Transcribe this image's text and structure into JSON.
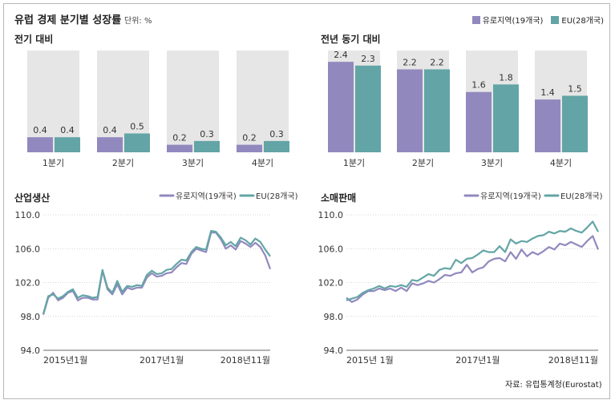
{
  "header": {
    "title": "유럽 경제 분기별 성장률",
    "unit": "단위: %",
    "legend": [
      "유로지역(19개국)",
      "EU(28개국)"
    ]
  },
  "colors": {
    "eurozone": "#9189be",
    "eu": "#63a5a6",
    "bg_bar": "#e6e6e6"
  },
  "panels": {
    "qoq_title": "전기 대비",
    "yoy_title": "전년 동기 대비",
    "industry_title": "산업생산",
    "retail_title": "소매판매"
  },
  "line_legend": [
    "유로지역(19개국)",
    "EU(28개국)"
  ],
  "source": "자료: 유럽통계청(Eurostat)",
  "chart_data": [
    {
      "type": "bar",
      "title": "전기 대비",
      "categories": [
        "1분기",
        "2분기",
        "3분기",
        "4분기"
      ],
      "series": [
        {
          "name": "유로지역(19개국)",
          "values": [
            0.4,
            0.4,
            0.2,
            0.2
          ],
          "labels": [
            "0.4",
            "0.4",
            "0.2",
            "0.2"
          ]
        },
        {
          "name": "EU(28개국)",
          "values": [
            0.4,
            0.5,
            0.3,
            0.3
          ],
          "labels": [
            "0.4",
            "0.5",
            "0.3",
            "0.3"
          ]
        }
      ],
      "ylim": [
        0,
        2.7
      ]
    },
    {
      "type": "bar",
      "title": "전년 동기 대비",
      "categories": [
        "1분기",
        "2분기",
        "3분기",
        "4분기"
      ],
      "series": [
        {
          "name": "유로지역(19개국)",
          "values": [
            2.4,
            2.2,
            1.6,
            1.4
          ],
          "labels": [
            "2.4",
            "2.2",
            "1.6",
            "1.4"
          ]
        },
        {
          "name": "EU(28개국)",
          "values": [
            2.3,
            2.2,
            1.8,
            1.5
          ],
          "labels": [
            "2.3",
            "2.2",
            "1.8",
            "1.5"
          ]
        }
      ],
      "ylim": [
        0,
        2.7
      ]
    },
    {
      "type": "line",
      "title": "산업생산",
      "x": [
        "2015-01",
        "2015-02",
        "2015-03",
        "2015-04",
        "2015-05",
        "2015-06",
        "2015-07",
        "2015-08",
        "2015-09",
        "2015-10",
        "2015-11",
        "2015-12",
        "2016-01",
        "2016-02",
        "2016-03",
        "2016-04",
        "2016-05",
        "2016-06",
        "2016-07",
        "2016-08",
        "2016-09",
        "2016-10",
        "2016-11",
        "2016-12",
        "2017-01",
        "2017-02",
        "2017-03",
        "2017-04",
        "2017-05",
        "2017-06",
        "2017-07",
        "2017-08",
        "2017-09",
        "2017-10",
        "2017-11",
        "2017-12",
        "2018-01",
        "2018-02",
        "2018-03",
        "2018-04",
        "2018-05",
        "2018-06",
        "2018-07",
        "2018-08",
        "2018-09",
        "2018-10",
        "2018-11"
      ],
      "x_ticks": [
        "2015년1월",
        "2017년1월",
        "2018년11월"
      ],
      "series": [
        {
          "name": "유로지역(19개국)",
          "values": [
            98.2,
            100.2,
            100.8,
            99.9,
            100.2,
            100.8,
            101.0,
            99.9,
            100.2,
            100.2,
            100.0,
            100.0,
            103.4,
            101.2,
            100.6,
            101.8,
            100.6,
            101.4,
            101.2,
            101.4,
            101.4,
            102.6,
            103.1,
            102.7,
            102.8,
            103.1,
            103.2,
            103.8,
            104.3,
            104.2,
            105.4,
            106.0,
            105.8,
            105.6,
            107.9,
            107.9,
            107.1,
            106.0,
            106.4,
            105.9,
            106.9,
            106.6,
            106.2,
            106.7,
            106.2,
            105.2,
            103.6
          ]
        },
        {
          "name": "EU(28개국)",
          "values": [
            98.3,
            100.4,
            100.6,
            100.1,
            100.4,
            100.9,
            101.2,
            100.2,
            100.5,
            100.4,
            100.2,
            100.3,
            103.5,
            101.4,
            100.8,
            102.2,
            100.9,
            101.6,
            101.5,
            101.7,
            101.6,
            102.9,
            103.4,
            103.0,
            103.1,
            103.5,
            103.6,
            104.2,
            104.7,
            104.6,
            105.6,
            106.2,
            106.0,
            105.9,
            108.1,
            108.0,
            107.3,
            106.4,
            106.8,
            106.3,
            107.3,
            107.0,
            106.5,
            107.2,
            106.8,
            105.9,
            105.1
          ]
        }
      ],
      "yticks": [
        "110.0",
        "106.0",
        "102.0",
        "98.0",
        "94.0"
      ],
      "ylim": [
        94,
        110
      ]
    },
    {
      "type": "line",
      "title": "소매판매",
      "x": [
        "2015-01",
        "2015-02",
        "2015-03",
        "2015-04",
        "2015-05",
        "2015-06",
        "2015-07",
        "2015-08",
        "2015-09",
        "2015-10",
        "2015-11",
        "2015-12",
        "2016-01",
        "2016-02",
        "2016-03",
        "2016-04",
        "2016-05",
        "2016-06",
        "2016-07",
        "2016-08",
        "2016-09",
        "2016-10",
        "2016-11",
        "2016-12",
        "2017-01",
        "2017-02",
        "2017-03",
        "2017-04",
        "2017-05",
        "2017-06",
        "2017-07",
        "2017-08",
        "2017-09",
        "2017-10",
        "2017-11",
        "2017-12",
        "2018-01",
        "2018-02",
        "2018-03",
        "2018-04",
        "2018-05",
        "2018-06",
        "2018-07",
        "2018-08",
        "2018-09",
        "2018-10",
        "2018-11"
      ],
      "x_ticks": [
        "2015년 1월",
        "2017년1월",
        "2018년11월"
      ],
      "series": [
        {
          "name": "유로지역(19개국)",
          "values": [
            100.2,
            99.7,
            100.0,
            100.6,
            101.0,
            101.0,
            101.3,
            101.1,
            101.3,
            101.0,
            101.4,
            101.0,
            101.9,
            101.7,
            101.9,
            102.2,
            102.0,
            102.4,
            102.9,
            102.8,
            103.1,
            103.2,
            104.1,
            103.2,
            103.6,
            103.8,
            104.5,
            104.8,
            104.9,
            104.5,
            105.6,
            104.8,
            105.9,
            105.1,
            105.6,
            105.3,
            105.7,
            106.2,
            105.9,
            106.6,
            106.4,
            106.8,
            106.5,
            106.2,
            106.9,
            107.5,
            105.9
          ]
        },
        {
          "name": "EU(28개국)",
          "values": [
            99.9,
            100.1,
            100.3,
            100.8,
            101.1,
            101.3,
            101.6,
            101.3,
            101.6,
            101.5,
            101.7,
            101.5,
            102.3,
            102.2,
            102.6,
            103.0,
            102.8,
            103.5,
            103.7,
            103.6,
            104.7,
            104.3,
            104.8,
            104.9,
            105.3,
            105.8,
            105.6,
            105.6,
            106.3,
            105.6,
            107.1,
            106.6,
            106.9,
            106.8,
            107.2,
            107.5,
            107.6,
            108.0,
            107.8,
            108.1,
            108.0,
            108.4,
            108.1,
            107.9,
            108.5,
            109.2,
            108.0
          ]
        }
      ],
      "yticks": [
        "110.0",
        "106.0",
        "102.0",
        "98.0",
        "94.0"
      ],
      "ylim": [
        94,
        110
      ]
    }
  ]
}
